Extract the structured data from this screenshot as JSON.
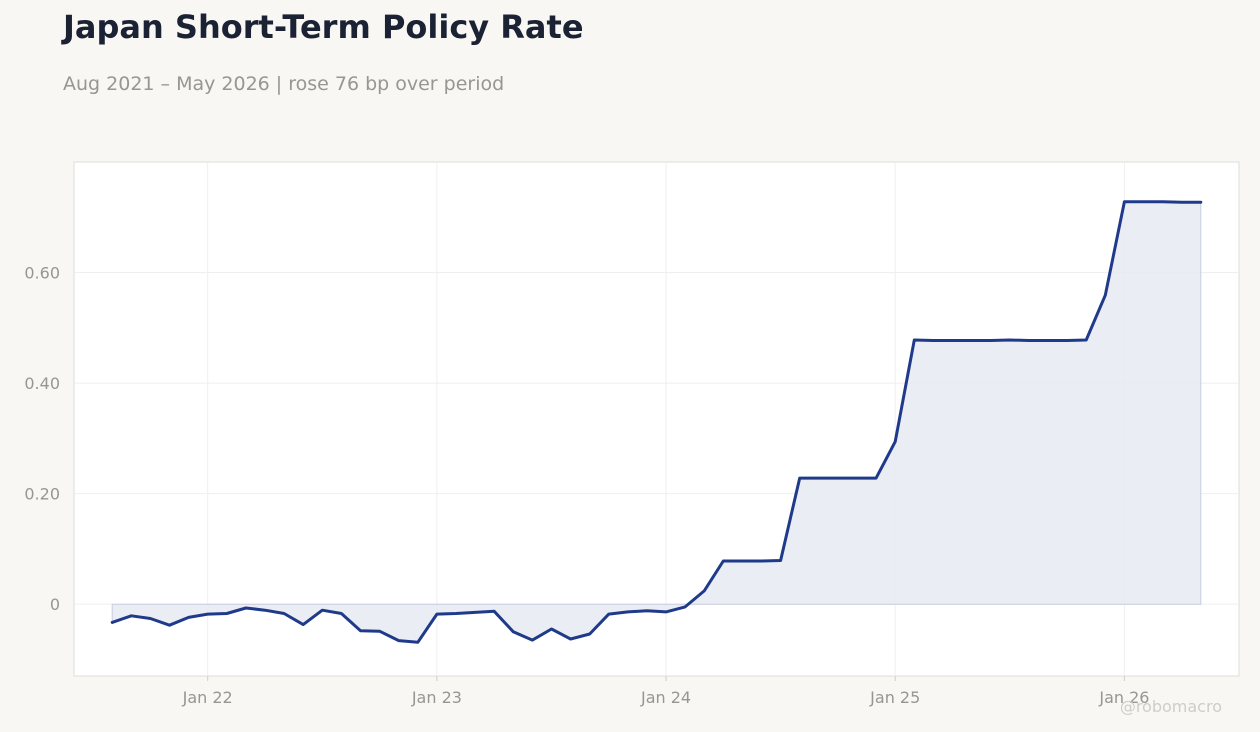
{
  "title": "Japan Short-Term Policy Rate",
  "subtitle": "Aug 2021 – May 2026 | rose 76 bp over period",
  "watermark": "@robomacro",
  "colors": {
    "background": "#f8f7f4",
    "plot_background": "#ffffff",
    "line": "#1f3a8a",
    "fill": "#e8eaf2",
    "grid": "#efefef",
    "tick_label": "#999590"
  },
  "chart_data": {
    "type": "area",
    "title": "Japan Short-Term Policy Rate",
    "subtitle": "Aug 2021 – May 2026 | rose 76 bp over period",
    "xlabel": "",
    "ylabel": "",
    "grid": true,
    "x_ticks": [
      {
        "date": "2022-01",
        "label": "Jan 22"
      },
      {
        "date": "2023-01",
        "label": "Jan 23"
      },
      {
        "date": "2024-01",
        "label": "Jan 24"
      },
      {
        "date": "2025-01",
        "label": "Jan 25"
      },
      {
        "date": "2026-01",
        "label": "Jan 26"
      }
    ],
    "y_ticks": [
      {
        "value": 0,
        "label": "0"
      },
      {
        "value": 0.2,
        "label": "0.20"
      },
      {
        "value": 0.4,
        "label": "0.40"
      },
      {
        "value": 0.6,
        "label": "0.60"
      }
    ],
    "xlim": [
      "2021-06",
      "2026-07"
    ],
    "ylim": [
      -0.13,
      0.8
    ],
    "series": [
      {
        "x": [
          "2021-08",
          "2021-09",
          "2021-10",
          "2021-11",
          "2021-12",
          "2022-01",
          "2022-02",
          "2022-03",
          "2022-04",
          "2022-05",
          "2022-06",
          "2022-07",
          "2022-08",
          "2022-09",
          "2022-10",
          "2022-11",
          "2022-12",
          "2023-01",
          "2023-02",
          "2023-03",
          "2023-04",
          "2023-05",
          "2023-06",
          "2023-07",
          "2023-08",
          "2023-09",
          "2023-10",
          "2023-11",
          "2023-12",
          "2024-01",
          "2024-02",
          "2024-03",
          "2024-04",
          "2024-05",
          "2024-06",
          "2024-07",
          "2024-08",
          "2024-09",
          "2024-10",
          "2024-11",
          "2024-12",
          "2025-01",
          "2025-02",
          "2025-03",
          "2025-04",
          "2025-05",
          "2025-06",
          "2025-07",
          "2025-08",
          "2025-09",
          "2025-10",
          "2025-11",
          "2025-12",
          "2026-01",
          "2026-02",
          "2026-03",
          "2026-04",
          "2026-05"
        ],
        "values": [
          -0.033,
          -0.021,
          -0.026,
          -0.038,
          -0.024,
          -0.018,
          -0.017,
          -0.007,
          -0.011,
          -0.017,
          -0.037,
          -0.011,
          -0.017,
          -0.048,
          -0.049,
          -0.066,
          -0.069,
          -0.018,
          -0.017,
          -0.015,
          -0.013,
          -0.05,
          -0.065,
          -0.045,
          -0.063,
          -0.054,
          -0.018,
          -0.014,
          -0.012,
          -0.014,
          -0.005,
          0.024,
          0.078,
          0.078,
          0.078,
          0.079,
          0.228,
          0.228,
          0.228,
          0.228,
          0.228,
          0.294,
          0.478,
          0.477,
          0.477,
          0.477,
          0.477,
          0.478,
          0.477,
          0.477,
          0.477,
          0.478,
          0.559,
          0.728,
          0.728,
          0.728,
          0.727,
          0.727
        ]
      }
    ]
  }
}
